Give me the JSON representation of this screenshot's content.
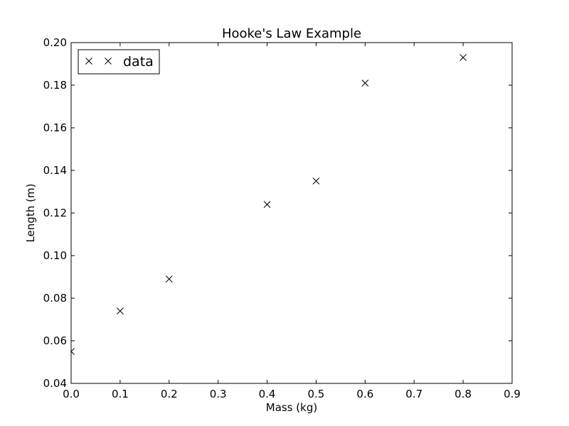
{
  "chart_data": {
    "type": "scatter",
    "title": "Hooke's Law Example",
    "xlabel": "Mass (kg)",
    "ylabel": "Length (m)",
    "xlim": [
      0.0,
      0.9
    ],
    "ylim": [
      0.04,
      0.2
    ],
    "xticks": [
      "0.0",
      "0.1",
      "0.2",
      "0.3",
      "0.4",
      "0.5",
      "0.6",
      "0.7",
      "0.8",
      "0.9"
    ],
    "yticks": [
      "0.04",
      "0.06",
      "0.08",
      "0.10",
      "0.12",
      "0.14",
      "0.16",
      "0.18",
      "0.20"
    ],
    "grid": false,
    "legend_position": "top-left",
    "series": [
      {
        "name": "data",
        "marker": "x",
        "color": "#000000",
        "x": [
          0.0,
          0.1,
          0.2,
          0.4,
          0.5,
          0.6,
          0.8
        ],
        "y": [
          0.055,
          0.074,
          0.089,
          0.124,
          0.135,
          0.181,
          0.193
        ]
      }
    ]
  }
}
